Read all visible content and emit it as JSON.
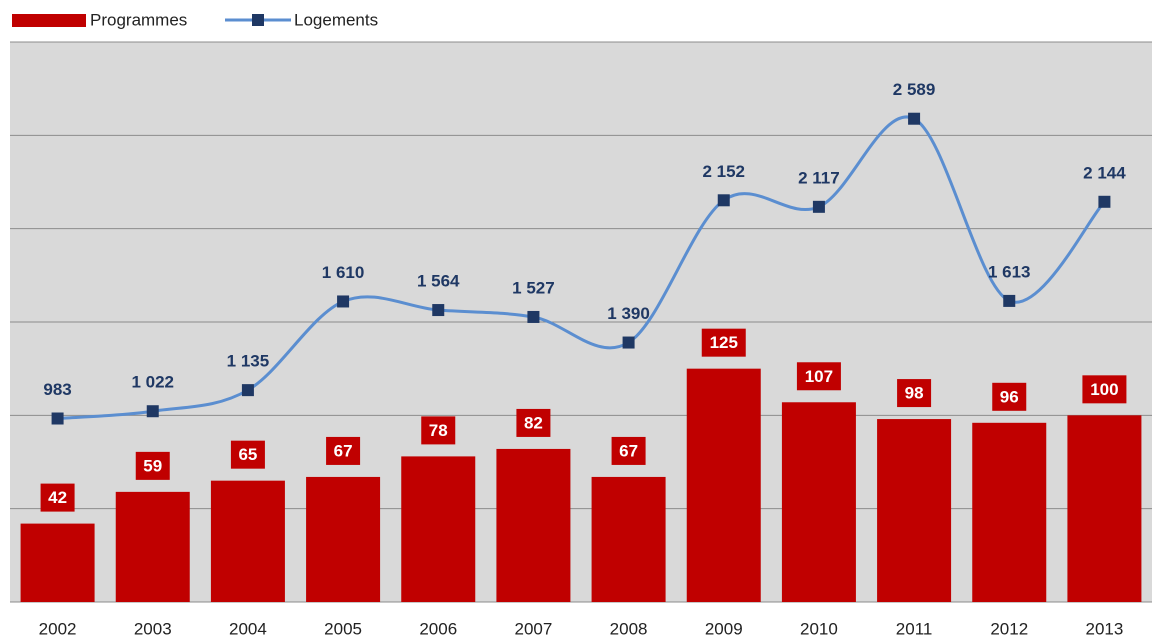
{
  "chart_data": {
    "type": "bar",
    "categories": [
      "2002",
      "2003",
      "2004",
      "2005",
      "2006",
      "2007",
      "2008",
      "2009",
      "2010",
      "2011",
      "2012",
      "2013"
    ],
    "series": [
      {
        "name": "Programmes",
        "type": "bar",
        "color": "#c00000",
        "values": [
          42,
          59,
          65,
          67,
          78,
          82,
          67,
          125,
          107,
          98,
          96,
          100
        ]
      },
      {
        "name": "Logements",
        "type": "line",
        "axis": "y2",
        "color": "#5b8ed0",
        "marker_color": "#1f3864",
        "values": [
          983,
          1022,
          1135,
          1610,
          1564,
          1527,
          1390,
          2152,
          2117,
          2589,
          1613,
          2144
        ],
        "value_labels": [
          "983",
          "1 022",
          "1 135",
          "1 610",
          "1 564",
          "1 527",
          "1 390",
          "2 152",
          "2 117",
          "2 589",
          "1 613",
          "2 144"
        ]
      }
    ],
    "ylim": [
      0,
      300
    ],
    "yticks": [
      0,
      50,
      100,
      150,
      200,
      250,
      300
    ],
    "y2lim": [
      0,
      3000
    ],
    "y2ticks": [
      0,
      500,
      1000,
      1500,
      2000,
      2500,
      3000
    ],
    "grid": true,
    "legend": "top-left"
  }
}
